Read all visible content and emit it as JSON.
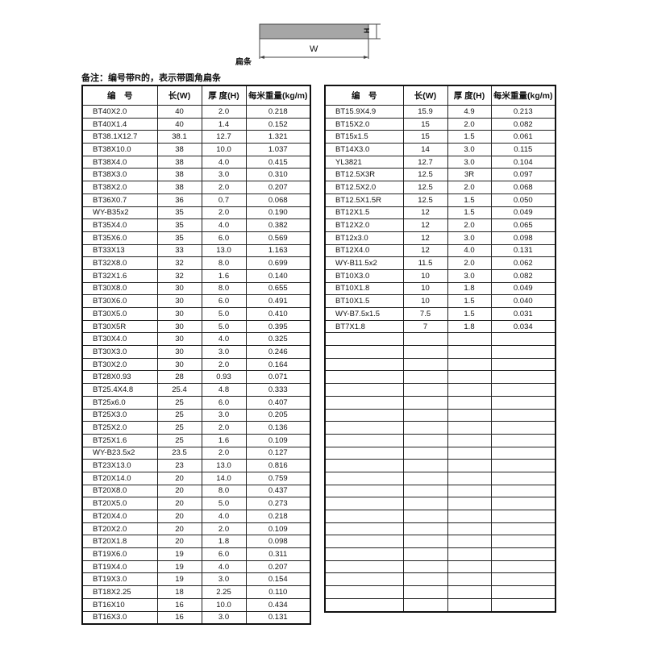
{
  "diagram": {
    "width_label": "W",
    "height_label": "H",
    "caption": "扁条",
    "bar_color": "#a6a6a6"
  },
  "note": "备注：编号带R的，表示带圆角扁条",
  "columns": [
    "编　号",
    "长(W)",
    "厚 度(H)",
    "每米重量(kg/m)"
  ],
  "left_rows": [
    [
      "BT40X2.0",
      "40",
      "2.0",
      "0.218"
    ],
    [
      "BT40X1.4",
      "40",
      "1.4",
      "0.152"
    ],
    [
      "BT38.1X12.7",
      "38.1",
      "12.7",
      "1.321"
    ],
    [
      "BT38X10.0",
      "38",
      "10.0",
      "1.037"
    ],
    [
      "BT38X4.0",
      "38",
      "4.0",
      "0.415"
    ],
    [
      "BT38X3.0",
      "38",
      "3.0",
      "0.310"
    ],
    [
      "BT38X2.0",
      "38",
      "2.0",
      "0.207"
    ],
    [
      "BT36X0.7",
      "36",
      "0.7",
      "0.068"
    ],
    [
      "WY-B35x2",
      "35",
      "2.0",
      "0.190"
    ],
    [
      "BT35X4.0",
      "35",
      "4.0",
      "0.382"
    ],
    [
      "BT35X6.0",
      "35",
      "6.0",
      "0.569"
    ],
    [
      "BT33X13",
      "33",
      "13.0",
      "1.163"
    ],
    [
      "BT32X8.0",
      "32",
      "8.0",
      "0.699"
    ],
    [
      "BT32X1.6",
      "32",
      "1.6",
      "0.140"
    ],
    [
      "BT30X8.0",
      "30",
      "8.0",
      "0.655"
    ],
    [
      "BT30X6.0",
      "30",
      "6.0",
      "0.491"
    ],
    [
      "BT30X5.0",
      "30",
      "5.0",
      "0.410"
    ],
    [
      "BT30X5R",
      "30",
      "5.0",
      "0.395"
    ],
    [
      "BT30X4.0",
      "30",
      "4.0",
      "0.325"
    ],
    [
      "BT30X3.0",
      "30",
      "3.0",
      "0.246"
    ],
    [
      "BT30X2.0",
      "30",
      "2.0",
      "0.164"
    ],
    [
      "BT28X0.93",
      "28",
      "0.93",
      "0.071"
    ],
    [
      "BT25.4X4.8",
      "25.4",
      "4.8",
      "0.333"
    ],
    [
      "BT25x6.0",
      "25",
      "6.0",
      "0.407"
    ],
    [
      "BT25X3.0",
      "25",
      "3.0",
      "0.205"
    ],
    [
      "BT25X2.0",
      "25",
      "2.0",
      "0.136"
    ],
    [
      "BT25X1.6",
      "25",
      "1.6",
      "0.109"
    ],
    [
      "WY-B23.5x2",
      "23.5",
      "2.0",
      "0.127"
    ],
    [
      "BT23X13.0",
      "23",
      "13.0",
      "0.816"
    ],
    [
      "BT20X14.0",
      "20",
      "14.0",
      "0.759"
    ],
    [
      "BT20X8.0",
      "20",
      "8.0",
      "0.437"
    ],
    [
      "BT20X5.0",
      "20",
      "5.0",
      "0.273"
    ],
    [
      "BT20X4.0",
      "20",
      "4.0",
      "0.218"
    ],
    [
      "BT20X2.0",
      "20",
      "2.0",
      "0.109"
    ],
    [
      "BT20X1.8",
      "20",
      "1.8",
      "0.098"
    ],
    [
      "BT19X6.0",
      "19",
      "6.0",
      "0.311"
    ],
    [
      "BT19X4.0",
      "19",
      "4.0",
      "0.207"
    ],
    [
      "BT19X3.0",
      "19",
      "3.0",
      "0.154"
    ],
    [
      "BT18X2.25",
      "18",
      "2.25",
      "0.110"
    ],
    [
      "BT16X10",
      "16",
      "10.0",
      "0.434"
    ],
    [
      "BT16X3.0",
      "16",
      "3.0",
      "0.131"
    ]
  ],
  "right_rows": [
    [
      "BT15.9X4.9",
      "15.9",
      "4.9",
      "0.213"
    ],
    [
      "BT15X2.0",
      "15",
      "2.0",
      "0.082"
    ],
    [
      "BT15x1.5",
      "15",
      "1.5",
      "0.061"
    ],
    [
      "BT14X3.0",
      "14",
      "3.0",
      "0.115"
    ],
    [
      "YL3821",
      "12.7",
      "3.0",
      "0.104"
    ],
    [
      "BT12.5X3R",
      "12.5",
      "3R",
      "0.097"
    ],
    [
      "BT12.5X2.0",
      "12.5",
      "2.0",
      "0.068"
    ],
    [
      "BT12.5X1.5R",
      "12.5",
      "1.5",
      "0.050"
    ],
    [
      "BT12X1.5",
      "12",
      "1.5",
      "0.049"
    ],
    [
      "BT12X2.0",
      "12",
      "2.0",
      "0.065"
    ],
    [
      "BT12x3.0",
      "12",
      "3.0",
      "0.098"
    ],
    [
      "BT12X4.0",
      "12",
      "4.0",
      "0.131"
    ],
    [
      "WY-B11.5x2",
      "11.5",
      "2.0",
      "0.062"
    ],
    [
      "BT10X3.0",
      "10",
      "3.0",
      "0.082"
    ],
    [
      "BT10X1.8",
      "10",
      "1.8",
      "0.049"
    ],
    [
      "BT10X1.5",
      "10",
      "1.5",
      "0.040"
    ],
    [
      "WY-B7.5x1.5",
      "7.5",
      "1.5",
      "0.031"
    ],
    [
      "BT7X1.8",
      "7",
      "1.8",
      "0.034"
    ]
  ]
}
